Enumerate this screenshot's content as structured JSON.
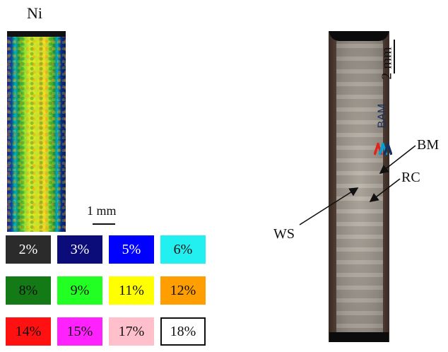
{
  "edx_map": {
    "element_label": "Ni",
    "scale_label": "1 mm"
  },
  "legend": {
    "rows": [
      [
        {
          "label": "2%",
          "bg": "#2b2b2b",
          "fg": "#ffffff"
        },
        {
          "label": "3%",
          "bg": "#0b0b7a",
          "fg": "#ffffff"
        },
        {
          "label": "5%",
          "bg": "#0000ff",
          "fg": "#ffffff"
        },
        {
          "label": "6%",
          "bg": "#22f0f0",
          "fg": "#111111"
        }
      ],
      [
        {
          "label": "8%",
          "bg": "#137a16",
          "fg": "#111111"
        },
        {
          "label": "9%",
          "bg": "#22ff22",
          "fg": "#111111"
        },
        {
          "label": "11%",
          "bg": "#ffff00",
          "fg": "#111111"
        },
        {
          "label": "12%",
          "bg": "#ff9e00",
          "fg": "#111111"
        }
      ],
      [
        {
          "label": "14%",
          "bg": "#ff1111",
          "fg": "#111111"
        },
        {
          "label": "15%",
          "bg": "#ff22ff",
          "fg": "#111111"
        },
        {
          "label": "17%",
          "bg": "#ffc0cc",
          "fg": "#111111"
        },
        {
          "label": "18%",
          "bg": "#ffffff",
          "fg": "#111111",
          "border": "#111111"
        }
      ]
    ]
  },
  "section": {
    "scale_label": "2 mm",
    "logo_text": "BAM",
    "logo_icon": "bam-logo-icon",
    "callouts": {
      "bm": "BM",
      "rc": "RC",
      "ws": "WS"
    }
  }
}
